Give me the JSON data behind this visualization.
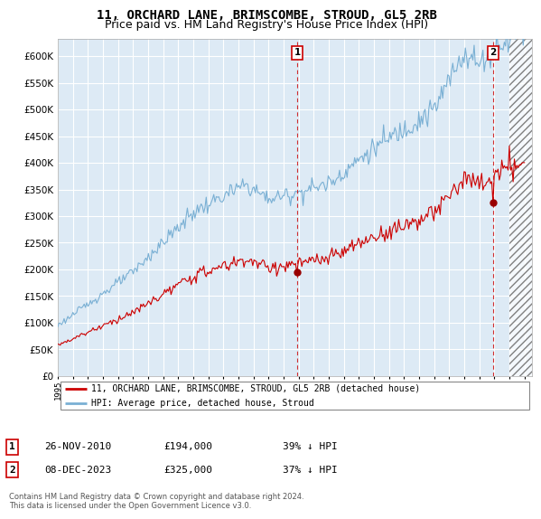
{
  "title": "11, ORCHARD LANE, BRIMSCOMBE, STROUD, GL5 2RB",
  "subtitle": "Price paid vs. HM Land Registry's House Price Index (HPI)",
  "ytick_values": [
    0,
    50000,
    100000,
    150000,
    200000,
    250000,
    300000,
    350000,
    400000,
    450000,
    500000,
    550000,
    600000
  ],
  "ylim": [
    0,
    632000
  ],
  "xlim_start": 1995.0,
  "xlim_end": 2026.5,
  "hatch_start": 2025.0,
  "sale1_x": 2010.9,
  "sale1_y": 194000,
  "sale1_label": "1",
  "sale1_date": "26-NOV-2010",
  "sale1_price": "£194,000",
  "sale1_hpi": "39% ↓ HPI",
  "sale2_x": 2023.93,
  "sale2_y": 325000,
  "sale2_label": "2",
  "sale2_date": "08-DEC-2023",
  "sale2_price": "£325,000",
  "sale2_hpi": "37% ↓ HPI",
  "legend_line1": "11, ORCHARD LANE, BRIMSCOMBE, STROUD, GL5 2RB (detached house)",
  "legend_line2": "HPI: Average price, detached house, Stroud",
  "footnote": "Contains HM Land Registry data © Crown copyright and database right 2024.\nThis data is licensed under the Open Government Licence v3.0.",
  "line_color_red": "#cc0000",
  "line_color_blue": "#7ab0d4",
  "chart_bg": "#ddeaf5",
  "background_color": "#ffffff",
  "grid_color": "#ffffff",
  "title_fontsize": 10,
  "subtitle_fontsize": 9
}
